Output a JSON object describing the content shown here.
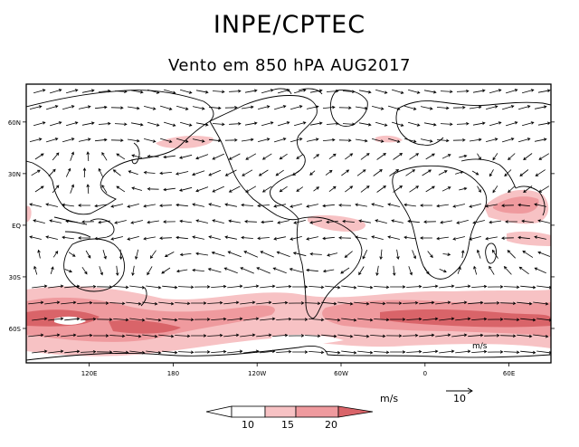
{
  "header": {
    "title": "INPE/CPTEC",
    "subtitle": "Vento em 850 hPA AUG2017"
  },
  "map": {
    "lat_ticks": [
      {
        "label": "60N",
        "lat": 60
      },
      {
        "label": "30N",
        "lat": 30
      },
      {
        "label": "EQ",
        "lat": 0
      },
      {
        "label": "30S",
        "lat": -30
      },
      {
        "label": "60S",
        "lat": -60
      }
    ],
    "lon_ticks": [
      {
        "label": "120E",
        "lon": 120
      },
      {
        "label": "180",
        "lon": 180
      },
      {
        "label": "120W",
        "lon": 240
      },
      {
        "label": "60W",
        "lon": 300
      },
      {
        "label": "0",
        "lon": 360
      },
      {
        "label": "60E",
        "lon": 420
      }
    ],
    "lon_range": [
      75,
      450
    ],
    "lat_range": [
      -80,
      82
    ],
    "inner_unit_label": "m/s",
    "colors": {
      "low": "#f7c2c4",
      "mid": "#ef9a9e",
      "high": "#d96469",
      "white": "#ffffff"
    }
  },
  "legend": {
    "unit": "m/s",
    "thresholds": [
      "10",
      "15",
      "20"
    ],
    "reference_vector": "10"
  }
}
